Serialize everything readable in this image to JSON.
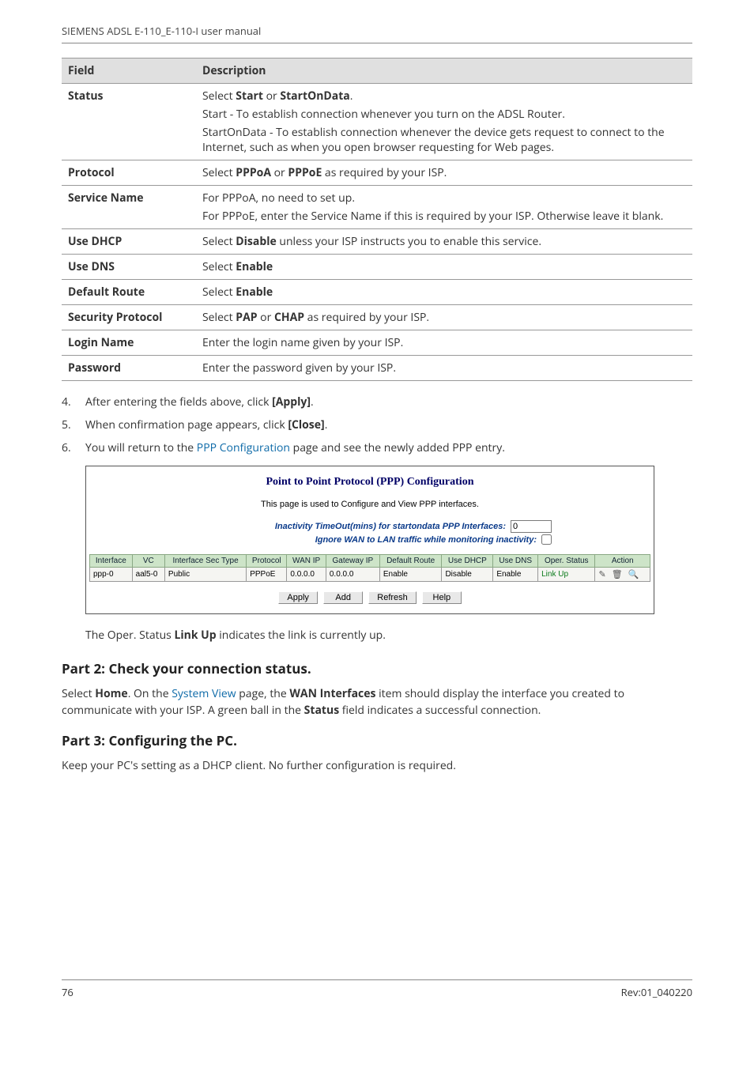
{
  "header": {
    "title": "SIEMENS ADSL E-110_E-110-I user manual"
  },
  "fieldTable": {
    "headers": [
      "Field",
      "Description"
    ],
    "rows": [
      {
        "field": "Status",
        "desc": [
          {
            "pre": "Select ",
            "b1": "Start",
            "mid": " or ",
            "b2": "StartOnData",
            "post": "."
          },
          {
            "text": "Start - To establish connection whenever you turn on the ADSL Router."
          },
          {
            "text": "StartOnData - To establish connection whenever the device gets request to connect to the Internet, such as when you open browser requesting for Web pages."
          }
        ]
      },
      {
        "field": "Protocol",
        "desc": [
          {
            "pre": "Select ",
            "b1": "PPPoA",
            "mid": " or ",
            "b2": "PPPoE",
            "post": " as required by your ISP."
          }
        ]
      },
      {
        "field": "Service Name",
        "desc": [
          {
            "text": "For PPPoA, no need to set up."
          },
          {
            "text": "For PPPoE, enter the Service Name if this is required by your ISP. Otherwise leave it blank."
          }
        ]
      },
      {
        "field": "Use DHCP",
        "desc": [
          {
            "pre": "Select ",
            "b1": "Disable",
            "post": " unless your ISP instructs you to enable this service."
          }
        ]
      },
      {
        "field": "Use DNS",
        "desc": [
          {
            "pre": "Select ",
            "b1": "Enable"
          }
        ]
      },
      {
        "field": "Default Route",
        "desc": [
          {
            "pre": "Select ",
            "b1": "Enable"
          }
        ]
      },
      {
        "field": "Security Protocol",
        "desc": [
          {
            "pre": "Select ",
            "b1": "PAP",
            "mid": " or ",
            "b2": "CHAP",
            "post": " as required by your ISP."
          }
        ]
      },
      {
        "field": "Login Name",
        "desc": [
          {
            "text": "Enter the login name given by your ISP."
          }
        ]
      },
      {
        "field": "Password",
        "desc": [
          {
            "text": "Enter the password given by your ISP."
          }
        ]
      }
    ]
  },
  "steps": [
    {
      "n": "4.",
      "pre": "After entering the fields above, click ",
      "b": "[Apply]",
      "post": "."
    },
    {
      "n": "5.",
      "pre": "When confirmation page appears, click ",
      "b": "[Close]",
      "post": "."
    },
    {
      "n": "6.",
      "pre": "You will return to the ",
      "link": "PPP Configuration",
      "post": " page and see the newly added PPP entry."
    }
  ],
  "pppBox": {
    "title": "Point to Point Protocol (PPP) Configuration",
    "sub": "This page is used to Configure and View PPP interfaces.",
    "opt1": "Inactivity TimeOut(mins) for startondata PPP Interfaces:",
    "opt1val": "0",
    "opt2": "Ignore WAN to LAN traffic while monitoring inactivity:",
    "headers": [
      "Interface",
      "VC",
      "Interface Sec Type",
      "Protocol",
      "WAN IP",
      "Gateway IP",
      "Default Route",
      "Use DHCP",
      "Use DNS",
      "Oper. Status",
      "Action"
    ],
    "row": {
      "interface": "ppp-0",
      "vc": "aal5-0",
      "sectype": "Public",
      "protocol": "PPPoE",
      "wanip": "0.0.0.0",
      "gwip": "0.0.0.0",
      "defroute": "Enable",
      "usedhcp": "Disable",
      "usedns": "Enable",
      "oper": "Link Up",
      "action": "✎ 🗑 🔍"
    },
    "buttons": [
      "Apply",
      "Add",
      "Refresh",
      "Help"
    ]
  },
  "captionAfter": {
    "pre": "The Oper. Status ",
    "b": "Link Up",
    "post": " indicates the link is currently up."
  },
  "part2h": "Part 2: Check your connection status.",
  "part2p": {
    "pre": "Select ",
    "b1": "Home",
    "t1": ". On the ",
    "link": "System View",
    "t2": " page, the ",
    "b2": "WAN Interfaces",
    "t3": " item should display the interface you created to communicate with your ISP. A green ball in the ",
    "b3": "Status",
    "t4": " field indicates a successful connection."
  },
  "part3h": "Part 3: Configuring the PC.",
  "part3p": "Keep your PC's setting as a DHCP client. No further configuration is required.",
  "footer": {
    "page": "76",
    "rev": "Rev:01_040220"
  }
}
